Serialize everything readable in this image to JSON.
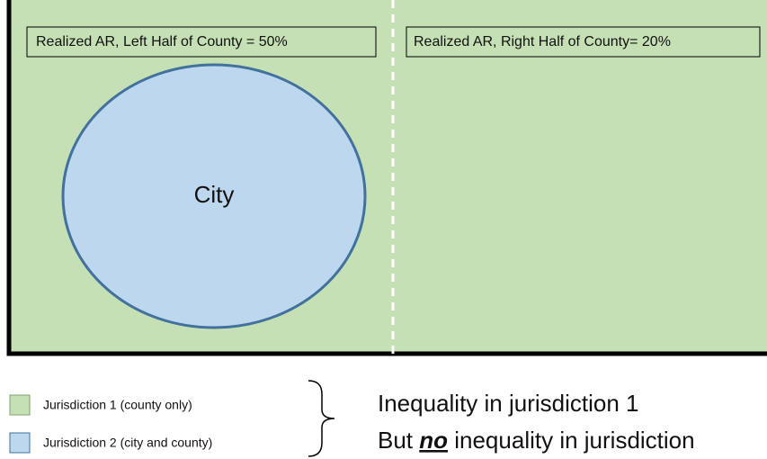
{
  "boxes": {
    "left": "Realized AR, Left Half of County = 50%",
    "right": "Realized AR, Right Half of County= 20%"
  },
  "city": "City",
  "legend": [
    "Jurisdiction 1 (county only)",
    "Jurisdiction 2 (city and county)"
  ],
  "note": {
    "line1": "Inequality in jurisdiction 1",
    "line2": {
      "before": "But ",
      "emphasis": "no",
      "after": " inequality in jurisdiction"
    }
  }
}
